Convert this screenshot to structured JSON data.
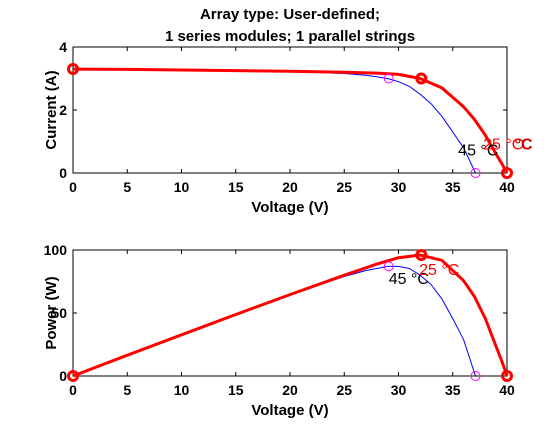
{
  "chart_data": [
    {
      "type": "line",
      "title_lines": [
        "Array type: User-defined;",
        "1 series modules; 1 parallel strings"
      ],
      "xlabel": "Voltage (V)",
      "ylabel": "Current (A)",
      "xlim": [
        0,
        40
      ],
      "ylim": [
        0,
        4
      ],
      "xticks": [
        0,
        5,
        10,
        15,
        20,
        25,
        30,
        35,
        40
      ],
      "yticks": [
        0,
        2,
        4
      ],
      "grid": false,
      "series": [
        {
          "name": "25 °C",
          "color": "#ff0000",
          "x": [
            0,
            5,
            10,
            15,
            20,
            25,
            28,
            30,
            32,
            34,
            36,
            37,
            38,
            39,
            39.6,
            40
          ],
          "y": [
            3.3,
            3.29,
            3.27,
            3.25,
            3.23,
            3.2,
            3.17,
            3.13,
            3.0,
            2.7,
            2.1,
            1.7,
            1.2,
            0.6,
            0.25,
            0
          ]
        },
        {
          "name": "45 °C",
          "color": "#0000ff",
          "x": [
            0,
            5,
            10,
            15,
            20,
            25,
            27,
            29,
            30,
            31,
            32,
            33,
            34,
            35,
            36,
            37.1
          ],
          "y": [
            3.3,
            3.29,
            3.27,
            3.25,
            3.22,
            3.16,
            3.1,
            3.0,
            2.9,
            2.75,
            2.5,
            2.2,
            1.8,
            1.3,
            0.8,
            0
          ]
        }
      ],
      "markers": [
        {
          "x": 0,
          "y": 3.3,
          "style": "thick",
          "color": "#ff0000"
        },
        {
          "x": 32.1,
          "y": 3.0,
          "style": "thick",
          "color": "#ff0000"
        },
        {
          "x": 40,
          "y": 0,
          "style": "thick",
          "color": "#ff0000"
        },
        {
          "x": 29.1,
          "y": 3.0,
          "style": "thin",
          "color": "#ff00ff"
        },
        {
          "x": 37.1,
          "y": 0,
          "style": "thin",
          "color": "#ff00ff"
        }
      ],
      "annotations": [
        {
          "text": "45 °C",
          "x": 35.5,
          "y": 0.55,
          "color": "#000000"
        },
        {
          "text": "25 °C",
          "x": 37.8,
          "y": 0.75,
          "color": "#ff0000"
        },
        {
          "text": "°C",
          "x": 40.7,
          "y": 0.75,
          "color": "#cc0000"
        }
      ]
    },
    {
      "type": "line",
      "xlabel": "Voltage (V)",
      "ylabel": "Power (W)",
      "xlim": [
        0,
        40
      ],
      "ylim": [
        0,
        100
      ],
      "xticks": [
        0,
        5,
        10,
        15,
        20,
        25,
        30,
        35,
        40
      ],
      "yticks": [
        0,
        50,
        100
      ],
      "grid": false,
      "series": [
        {
          "name": "25 °C",
          "color": "#ff0000",
          "x": [
            0,
            5,
            10,
            15,
            20,
            25,
            28,
            30,
            32,
            34,
            36,
            37,
            38,
            39,
            39.6,
            40
          ],
          "y": [
            0,
            16.5,
            32.7,
            48.8,
            64.6,
            80,
            88.8,
            93.9,
            96,
            91.8,
            75.6,
            62.9,
            45.6,
            23.4,
            9.9,
            0
          ]
        },
        {
          "name": "45 °C",
          "color": "#0000ff",
          "x": [
            0,
            5,
            10,
            15,
            20,
            25,
            27,
            29,
            30,
            31,
            32,
            33,
            34,
            35,
            36,
            37.1
          ],
          "y": [
            0,
            16.5,
            32.7,
            48.8,
            64.4,
            79,
            83.7,
            87,
            87,
            85.3,
            80,
            72.6,
            61.2,
            45.5,
            28.8,
            0
          ]
        }
      ],
      "markers": [
        {
          "x": 0,
          "y": 0,
          "style": "thick",
          "color": "#ff0000"
        },
        {
          "x": 32.1,
          "y": 96,
          "style": "thick",
          "color": "#ff0000"
        },
        {
          "x": 40,
          "y": 0,
          "style": "thick",
          "color": "#ff0000"
        },
        {
          "x": 29.1,
          "y": 87,
          "style": "thin",
          "color": "#ff00ff"
        },
        {
          "x": 37.1,
          "y": 0,
          "style": "thin",
          "color": "#ff00ff"
        }
      ],
      "annotations": [
        {
          "text": "45 °C",
          "x": 29.1,
          "y": 73,
          "color": "#000000"
        },
        {
          "text": "25 °C",
          "x": 31.9,
          "y": 80,
          "color": "#ff0000"
        }
      ]
    }
  ]
}
